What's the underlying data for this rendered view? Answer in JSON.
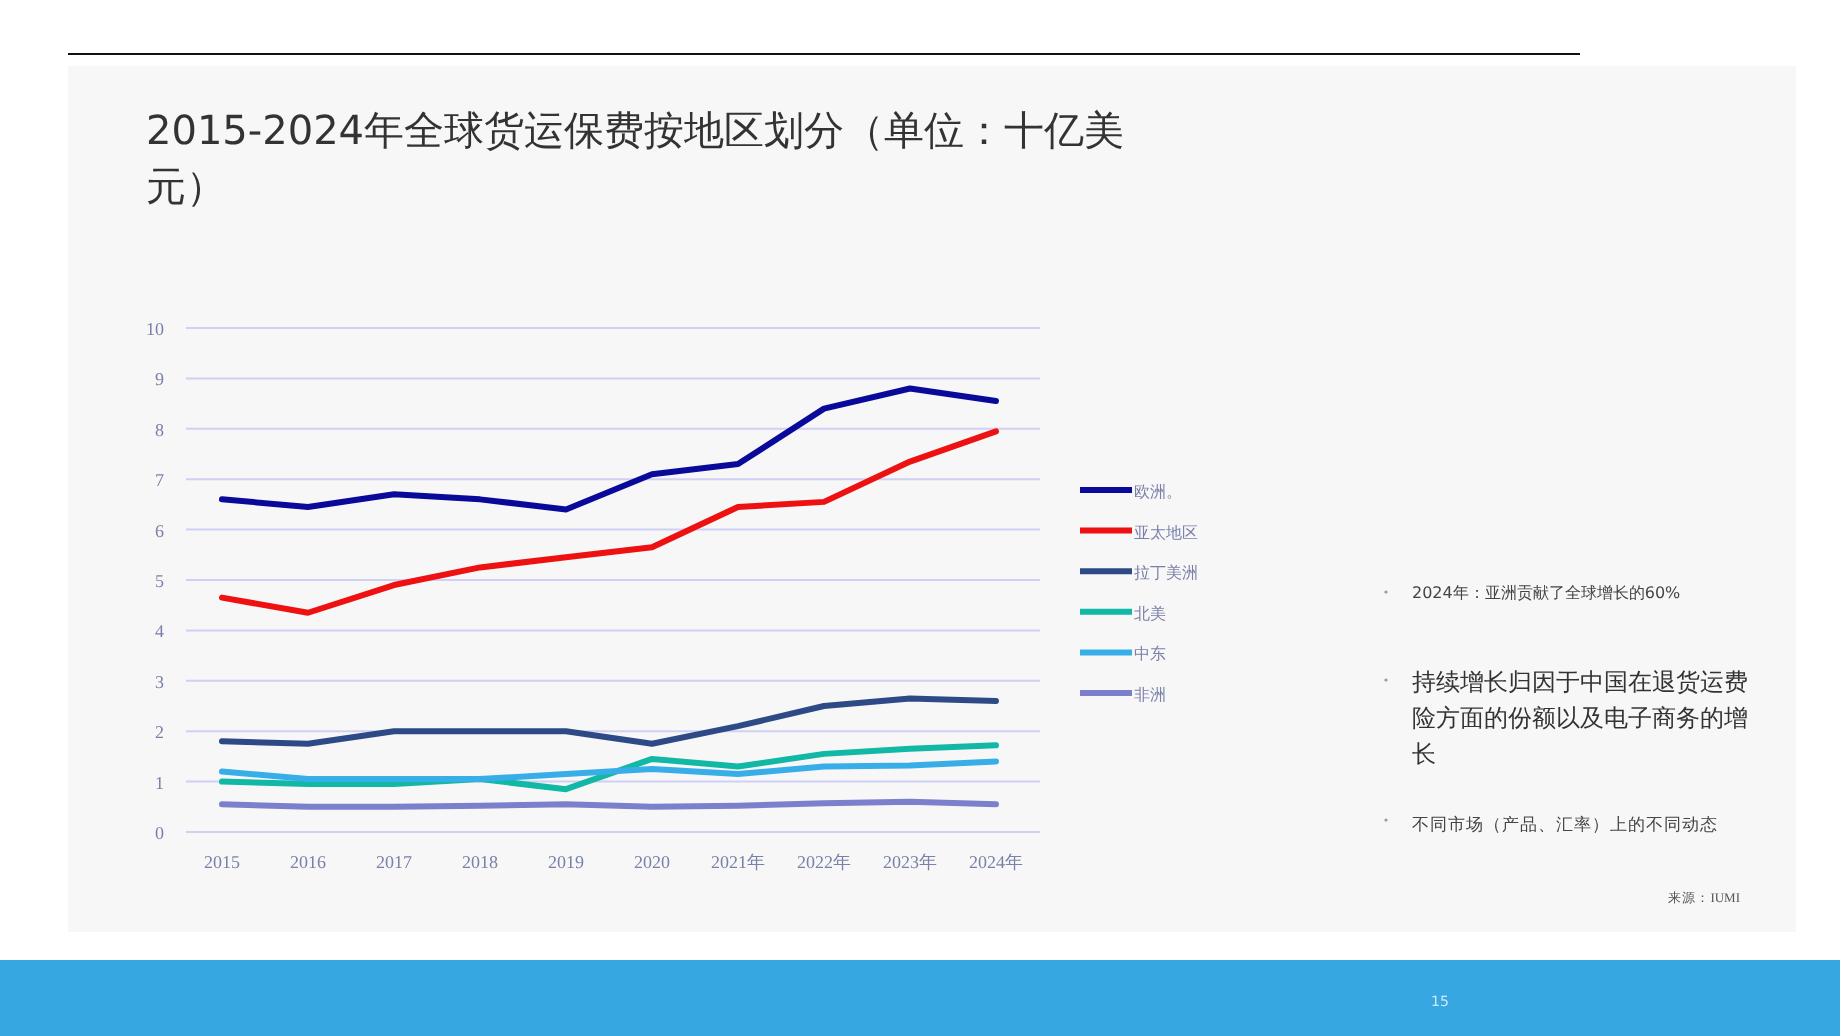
{
  "chart_data": {
    "type": "line",
    "title": "2015-2024年全球货运保费按地区划分（单位：十亿美元）",
    "categories": [
      "2015",
      "2016",
      "2017",
      "2018",
      "2019",
      "2020",
      "2021年",
      "2022年",
      "2023年",
      "2024年"
    ],
    "series": [
      {
        "name": "欧洲。",
        "color": "#0a0a9a",
        "values": [
          6.6,
          6.45,
          6.7,
          6.6,
          6.4,
          7.1,
          7.3,
          8.4,
          8.8,
          8.55
        ]
      },
      {
        "name": "亚太地区",
        "color": "#ee1111",
        "values": [
          4.65,
          4.35,
          4.9,
          5.25,
          5.45,
          5.65,
          6.45,
          6.55,
          7.35,
          7.95
        ]
      },
      {
        "name": "拉丁美洲",
        "color": "#2e4a86",
        "values": [
          1.8,
          1.75,
          2.0,
          2.0,
          2.0,
          1.75,
          2.1,
          2.5,
          2.65,
          2.6
        ]
      },
      {
        "name": "北美",
        "color": "#12b8a6",
        "values": [
          1.0,
          0.95,
          0.95,
          1.05,
          0.85,
          1.45,
          1.3,
          1.55,
          1.65,
          1.72
        ]
      },
      {
        "name": "中东",
        "color": "#38aee8",
        "values": [
          1.2,
          1.05,
          1.05,
          1.05,
          1.15,
          1.25,
          1.15,
          1.3,
          1.32,
          1.4
        ]
      },
      {
        "name": "非洲",
        "color": "#7b7fcc",
        "values": [
          0.55,
          0.5,
          0.5,
          0.52,
          0.55,
          0.5,
          0.52,
          0.57,
          0.6,
          0.55
        ]
      }
    ],
    "ylim": [
      0,
      10
    ],
    "yticks": [
      0,
      1,
      2,
      3,
      4,
      5,
      6,
      7,
      8,
      9,
      10
    ],
    "grid": "y",
    "legend": "right",
    "marker": "none",
    "annotations": [
      "2024年：亚洲贡献了全球增长的60%",
      "持续增长归因于中国在退货运费险方面的份额以及电子商务的增长",
      "不同市场（产品、汇率）上的不同动态",
      "来源：IUMI",
      "15"
    ]
  }
}
